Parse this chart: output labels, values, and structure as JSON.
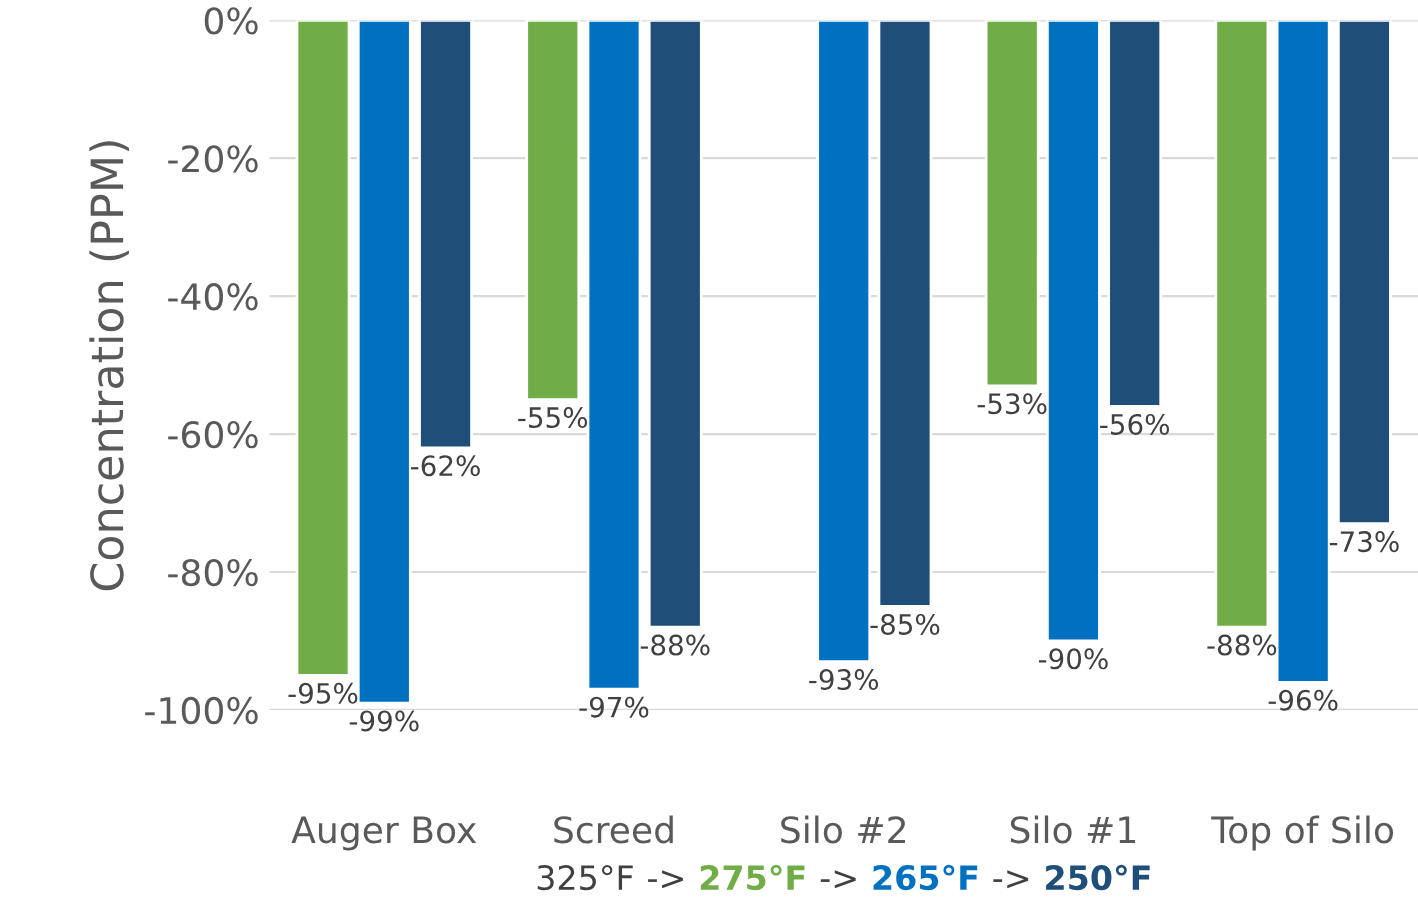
{
  "chart_data": {
    "type": "bar",
    "ylabel": "Concentration (PPM)",
    "xlabel": "325°F -> 275°F -> 265°F -> 250°F",
    "categories": [
      "Auger Box",
      "Screed",
      "Silo #2",
      "Silo #1",
      "Top of Silo"
    ],
    "series": [
      {
        "color": "#70ad47",
        "values": [
          -95,
          -55,
          null,
          -53,
          -88
        ],
        "value_labels": [
          "-95%",
          "-55%",
          null,
          "-53%",
          "-88%"
        ]
      },
      {
        "color": "#0070c0",
        "values": [
          -99,
          -97,
          -93,
          -90,
          -96
        ],
        "value_labels": [
          "-99%",
          "-97%",
          "-93%",
          "-90%",
          "-96%"
        ]
      },
      {
        "color": "#1f4e79",
        "values": [
          -62,
          -88,
          -85,
          -56,
          -73
        ],
        "value_labels": [
          "-62%",
          "-88%",
          "-85%",
          "-56%",
          "-73%"
        ]
      }
    ],
    "ylim": [
      -100,
      0
    ],
    "yticks": [
      {
        "value": -100,
        "label": "-100%"
      },
      {
        "value": -80,
        "label": "-80%"
      },
      {
        "value": -60,
        "label": "-60%"
      },
      {
        "value": -40,
        "label": "-40%"
      },
      {
        "value": -20,
        "label": "-20%"
      },
      {
        "value": 0,
        "label": "0%"
      }
    ],
    "grid": "y"
  }
}
